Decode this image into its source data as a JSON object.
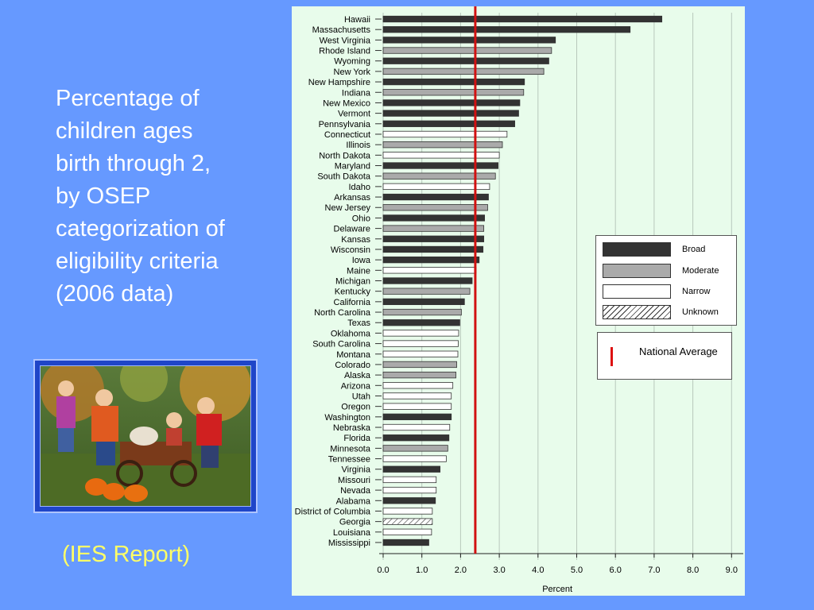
{
  "description": "Percentage of children ages birth through 2, by OSEP categorization of eligibility criteria (2006 data)",
  "citation": "(IES Report)",
  "photo": {
    "alt": "Children playing with a wagon and pumpkins"
  },
  "colors": {
    "background": "#6699FF",
    "chart_background": "#E8FCEB",
    "broad": "#333333",
    "moderate": "#AAAAAA",
    "narrow": "#FFFFFF",
    "national_average": "#D11111",
    "description_text": "#FFFFFF",
    "citation_text": "#FFFF66"
  },
  "legend": {
    "broad": "Broad",
    "moderate": "Moderate",
    "narrow": "Narrow",
    "unknown": "Unknown",
    "national_average": "National Average"
  },
  "chart_data": {
    "type": "bar",
    "orientation": "horizontal",
    "xlabel": "Percent",
    "xlim": [
      0,
      9.0
    ],
    "xticks": [
      "0.0",
      "1.0",
      "2.0",
      "3.0",
      "4.0",
      "5.0",
      "6.0",
      "7.0",
      "8.0",
      "9.0"
    ],
    "grid": true,
    "legend_position": "right",
    "national_average": 2.38,
    "categories": [
      "Hawaii",
      "Massachusetts",
      "West Virginia",
      "Rhode Island",
      "Wyoming",
      "New York",
      "New Hampshire",
      "Indiana",
      "New Mexico",
      "Vermont",
      "Pennsylvania",
      "Connecticut",
      "Illinois",
      "North Dakota",
      "Maryland",
      "South Dakota",
      "Idaho",
      "Arkansas",
      "New Jersey",
      "Ohio",
      "Delaware",
      "Kansas",
      "Wisconsin",
      "Iowa",
      "Maine",
      "Michigan",
      "Kentucky",
      "California",
      "North Carolina",
      "Texas",
      "Oklahoma",
      "South Carolina",
      "Montana",
      "Colorado",
      "Alaska",
      "Arizona",
      "Utah",
      "Oregon",
      "Washington",
      "Nebraska",
      "Florida",
      "Minnesota",
      "Tennessee",
      "Virginia",
      "Missouri",
      "Nevada",
      "Alabama",
      "District of Columbia",
      "Georgia",
      "Louisiana",
      "Mississippi"
    ],
    "values": [
      7.2,
      6.38,
      4.45,
      4.35,
      4.28,
      4.15,
      3.65,
      3.63,
      3.53,
      3.5,
      3.4,
      3.2,
      3.08,
      3.0,
      2.97,
      2.9,
      2.75,
      2.72,
      2.7,
      2.62,
      2.6,
      2.6,
      2.58,
      2.48,
      2.4,
      2.3,
      2.24,
      2.1,
      2.02,
      1.98,
      1.95,
      1.94,
      1.93,
      1.9,
      1.88,
      1.8,
      1.76,
      1.76,
      1.76,
      1.72,
      1.7,
      1.67,
      1.63,
      1.47,
      1.37,
      1.37,
      1.35,
      1.27,
      1.27,
      1.25,
      1.18
    ],
    "category_types": [
      "broad",
      "broad",
      "broad",
      "moderate",
      "broad",
      "moderate",
      "broad",
      "moderate",
      "broad",
      "broad",
      "broad",
      "narrow",
      "moderate",
      "narrow",
      "broad",
      "moderate",
      "narrow",
      "broad",
      "moderate",
      "broad",
      "moderate",
      "broad",
      "broad",
      "broad",
      "narrow",
      "broad",
      "moderate",
      "broad",
      "moderate",
      "broad",
      "narrow",
      "narrow",
      "narrow",
      "moderate",
      "moderate",
      "narrow",
      "narrow",
      "narrow",
      "broad",
      "narrow",
      "broad",
      "moderate",
      "narrow",
      "broad",
      "narrow",
      "narrow",
      "broad",
      "narrow",
      "unknown",
      "narrow",
      "broad"
    ]
  }
}
